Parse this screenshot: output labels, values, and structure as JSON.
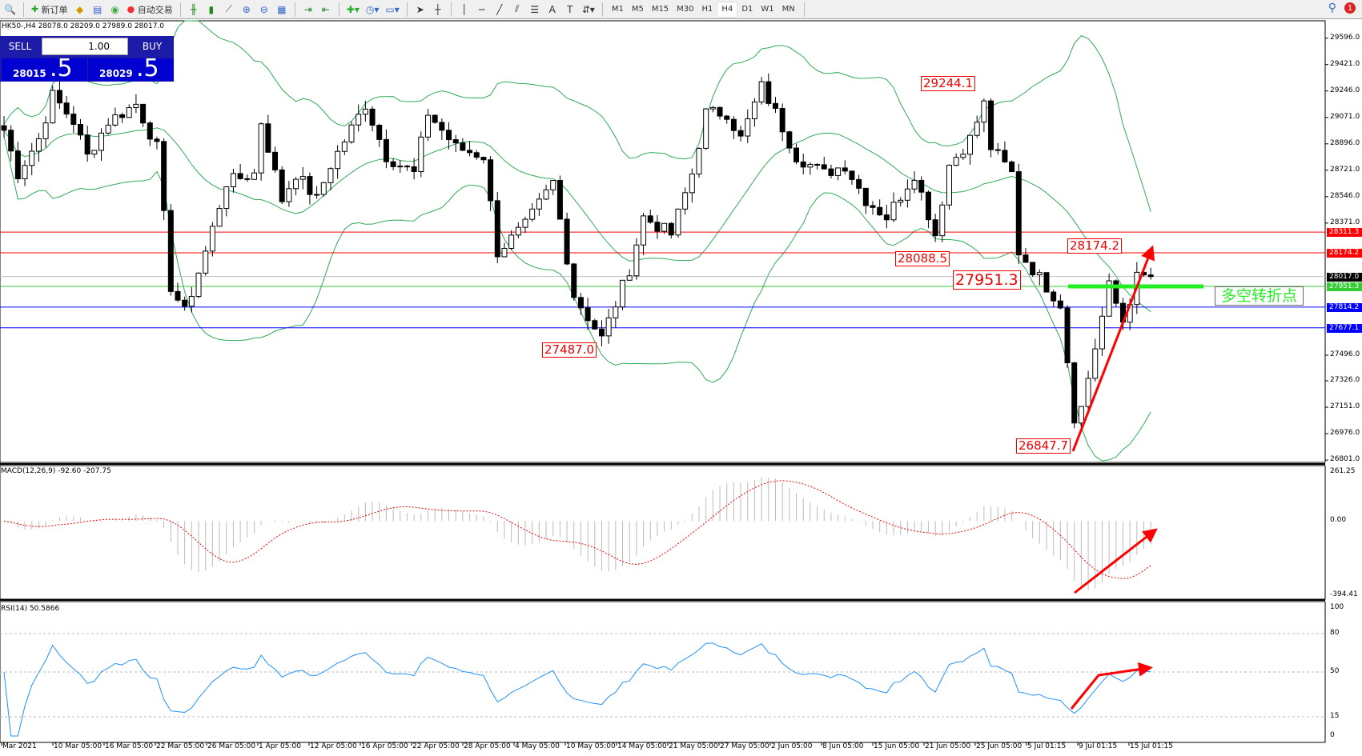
{
  "toolbar": {
    "new_order": "新订单",
    "auto_trade": "自动交易",
    "timeframes": [
      "M1",
      "M5",
      "M15",
      "M30",
      "H1",
      "H4",
      "D1",
      "W1",
      "MN"
    ],
    "active_timeframe": "H4",
    "notification_count": "1"
  },
  "chart_header": {
    "symbol_info": "HK50-,H4  28078.0 28209.0 27989.0 28017.0"
  },
  "trade_panel": {
    "sell_label": "SELL",
    "buy_label": "BUY",
    "lot": "1.00",
    "sell_price_main": "28015",
    "sell_price_big": ".5",
    "buy_price_main": "28029",
    "buy_price_big": ".5",
    "color": "#1c1ca8"
  },
  "price_axis": {
    "ticks": [
      "29596.0",
      "29421.0",
      "29246.0",
      "29071.0",
      "28896.0",
      "28721.0",
      "28546.0",
      "28371.0",
      "27496.0",
      "27326.0",
      "27151.0",
      "26976.0",
      "26801.0"
    ],
    "range": [
      26801,
      29596
    ]
  },
  "hlines": [
    {
      "price": 28311.3,
      "label": "28311.3",
      "color": "#ff0000"
    },
    {
      "price": 28174.2,
      "label": "28174.2",
      "color": "#ff0000"
    },
    {
      "price": 28017.0,
      "label": "28017.0",
      "color": "#000000",
      "line": "#c0c0c0"
    },
    {
      "price": 27951.3,
      "label": "27951.3",
      "color": "#33cc33"
    },
    {
      "price": 27814.2,
      "label": "27814.2",
      "color": "#0000ff"
    },
    {
      "price": 27677.1,
      "label": "27677.1",
      "color": "#0000ff"
    }
  ],
  "annotations": [
    "29244.1",
    "28088.5",
    "27951.3",
    "27487.0",
    "26847.7",
    "28174.2"
  ],
  "pivot_note": "多空转折点",
  "macd": {
    "label": "MACD(12,26,9) -92.60 -207.75",
    "top": "261.25",
    "zero": "0.00",
    "bottom": "-394.41"
  },
  "rsi": {
    "label": "RSI(14) 50.5866",
    "levels": [
      "100",
      "80",
      "50",
      "15",
      "0"
    ]
  },
  "time_axis": [
    "Mar 2021",
    "10 Mar 05:00",
    "16 Mar 05:00",
    "22 Mar 05:00",
    "26 Mar 05:00",
    "1 Apr 05:00",
    "12 Apr 05:00",
    "16 Apr 05:00",
    "22 Apr 05:00",
    "28 Apr 05:00",
    "4 May 05:00",
    "10 May 05:00",
    "14 May 05:00",
    "21 May 05:00",
    "27 May 05:00",
    "2 Jun 05:00",
    "8 Jun 05:00",
    "15 Jun 05:00",
    "21 Jun 05:00",
    "25 Jun 05:00",
    "5 Jul 01:15",
    "9 Jul 01:15",
    "15 Jul 01:15"
  ],
  "chart_data": {
    "type": "candlestick",
    "timeframe": "H4",
    "price_keypoints": [
      [
        0,
        28987
      ],
      [
        2,
        28699
      ],
      [
        5,
        28929
      ],
      [
        7,
        29216
      ],
      [
        10,
        29044
      ],
      [
        12,
        28814
      ],
      [
        15,
        29044
      ],
      [
        19,
        29159
      ],
      [
        22,
        28872
      ],
      [
        24,
        27952
      ],
      [
        26,
        27779
      ],
      [
        29,
        28181
      ],
      [
        32,
        28641
      ],
      [
        36,
        28699
      ],
      [
        37,
        29044
      ],
      [
        40,
        28526
      ],
      [
        42,
        28699
      ],
      [
        45,
        28526
      ],
      [
        47,
        28756
      ],
      [
        52,
        29159
      ],
      [
        55,
        28814
      ],
      [
        59,
        28699
      ],
      [
        61,
        29101
      ],
      [
        65,
        28872
      ],
      [
        69,
        28814
      ],
      [
        71,
        28181
      ],
      [
        75,
        28354
      ],
      [
        79,
        28641
      ],
      [
        82,
        27894
      ],
      [
        86,
        27607
      ],
      [
        90,
        28066
      ],
      [
        92,
        28411
      ],
      [
        96,
        28296
      ],
      [
        99,
        28699
      ],
      [
        101,
        29101
      ],
      [
        104,
        29101
      ],
      [
        106,
        28929
      ],
      [
        109,
        29274
      ],
      [
        111,
        29101
      ],
      [
        114,
        28814
      ],
      [
        118,
        28699
      ],
      [
        121,
        28756
      ],
      [
        124,
        28526
      ],
      [
        127,
        28411
      ],
      [
        131,
        28699
      ],
      [
        134,
        28296
      ],
      [
        136,
        28756
      ],
      [
        139,
        28929
      ],
      [
        141,
        29159
      ],
      [
        142,
        28872
      ],
      [
        145,
        28699
      ],
      [
        146,
        28181
      ],
      [
        149,
        28009
      ],
      [
        152,
        27837
      ],
      [
        154,
        27089
      ],
      [
        155,
        27147
      ],
      [
        157,
        27549
      ],
      [
        159,
        27952
      ],
      [
        161,
        27722
      ],
      [
        163,
        28009
      ],
      [
        165,
        28017
      ]
    ],
    "indicators": [
      "Bollinger Bands",
      "MACD(12,26,9)",
      "RSI(14)"
    ]
  }
}
